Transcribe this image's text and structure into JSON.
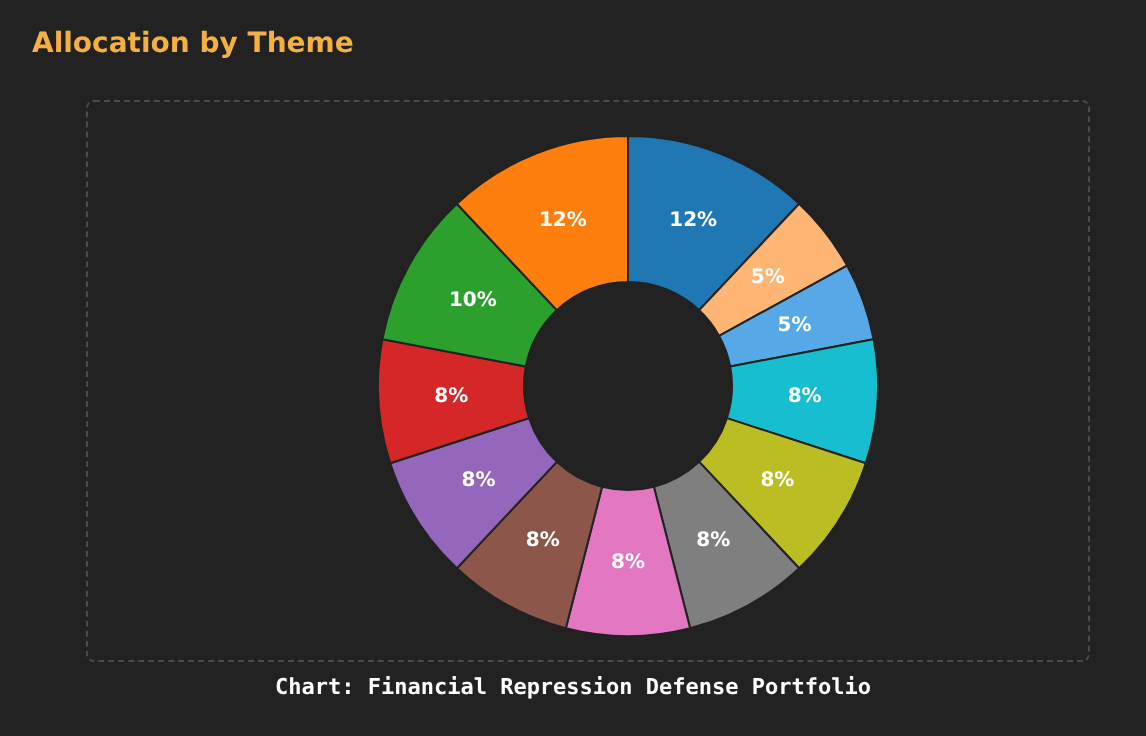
{
  "chart_data": {
    "type": "donut",
    "title": "Allocation by Theme",
    "annotations": [
      "Chart: Financial Repression Defense Portfolio"
    ],
    "categories": [
      null,
      null,
      null,
      null,
      null,
      null,
      null,
      null,
      null,
      null,
      null,
      null
    ],
    "values": [
      12,
      5,
      5,
      8,
      8,
      8,
      8,
      8,
      8,
      8,
      10,
      12
    ],
    "value_labels": [
      "12%",
      "5%",
      "5%",
      "8%",
      "8%",
      "8%",
      "8%",
      "8%",
      "8%",
      "8%",
      "10%",
      "12%"
    ],
    "colors": [
      "#1f77b4",
      "#ffb574",
      "#56a9e6",
      "#17becf",
      "#bcbd22",
      "#7f7f7f",
      "#e377c2",
      "#8c564b",
      "#9467bd",
      "#d62728",
      "#2ca02c",
      "#ff7f0e"
    ],
    "legend": false
  }
}
